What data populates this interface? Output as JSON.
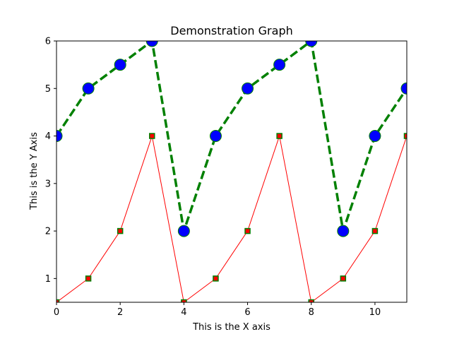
{
  "chart_data": {
    "type": "line",
    "title": "Demonstration Graph",
    "xlabel": "This is the X axis",
    "ylabel": "This is the Y Axis",
    "xlim": [
      0,
      11
    ],
    "ylim": [
      0.5,
      6
    ],
    "xticks": [
      0,
      2,
      4,
      6,
      8,
      10
    ],
    "yticks": [
      1,
      2,
      3,
      4,
      5,
      6
    ],
    "grid": false,
    "series": [
      {
        "x": [
          0,
          1,
          2,
          3,
          4,
          5,
          6,
          7,
          8,
          9,
          10,
          11
        ],
        "y": [
          4,
          5,
          5.5,
          6,
          2,
          4,
          5,
          5.5,
          6,
          2,
          4,
          5
        ],
        "line_color": "#008000",
        "line_style": "dashed",
        "marker": "circle",
        "marker_fill": "#0000ff",
        "marker_edge": "#008000"
      },
      {
        "x": [
          0,
          1,
          2,
          3,
          4,
          5,
          6,
          7,
          8,
          9,
          10,
          11
        ],
        "y": [
          0.5,
          1,
          2,
          4,
          0.5,
          1,
          2,
          4,
          0.5,
          1,
          2,
          4
        ],
        "line_color": "#ff0000",
        "line_style": "solid",
        "marker": "square",
        "marker_fill": "#ff0000",
        "marker_edge": "#008000"
      }
    ]
  }
}
